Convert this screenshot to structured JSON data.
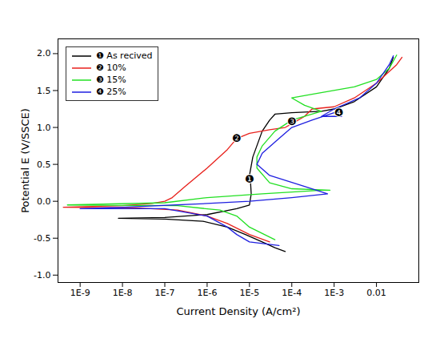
{
  "chart_data": {
    "type": "line",
    "x_label": "Current Density (A/cm²)",
    "y_label": "Potential E (V/SSCE)",
    "log": "x",
    "grid": false,
    "legend": "top-left",
    "xlim": [
      3e-10,
      0.1
    ],
    "ylim": [
      -1.1,
      2.2
    ],
    "xticks": [
      {
        "value": 1e-09,
        "label": "1E-9"
      },
      {
        "value": 1e-08,
        "label": "1E-8"
      },
      {
        "value": 1e-07,
        "label": "1E-7"
      },
      {
        "value": 1e-06,
        "label": "1E-6"
      },
      {
        "value": 1e-05,
        "label": "1E-5"
      },
      {
        "value": 0.0001,
        "label": "1E-4"
      },
      {
        "value": 0.001,
        "label": "1E-3"
      },
      0.01
    ],
    "yticks": [
      {
        "value": -1,
        "label": "-1.0"
      },
      -0.5,
      {
        "value": 0,
        "label": "0.0"
      },
      0.5,
      {
        "value": 1,
        "label": "1.0"
      },
      1.5,
      {
        "value": 2,
        "label": "2.0"
      }
    ],
    "series": [
      {
        "name": "❶ As recived",
        "color": "#000000",
        "x": [
          7e-05,
          4e-05,
          2e-05,
          8e-06,
          3e-06,
          8e-07,
          1e-07,
          8e-09,
          1e-07,
          1e-06,
          5e-06,
          1e-05,
          1.1e-05,
          1.05e-05,
          1e-05,
          1.2e-05,
          2e-05,
          3e-05,
          4e-05,
          0.0001,
          0.0005,
          0.001,
          0.003,
          0.01,
          0.02,
          0.025
        ],
        "values": [
          -0.68,
          -0.63,
          -0.55,
          -0.45,
          -0.35,
          -0.27,
          -0.24,
          -0.23,
          -0.22,
          -0.18,
          -0.1,
          -0.05,
          0.1,
          0.3,
          0.35,
          0.6,
          0.95,
          1.1,
          1.18,
          1.2,
          1.22,
          1.25,
          1.35,
          1.55,
          1.8,
          1.95
        ]
      },
      {
        "name": "❷ 10%",
        "color": "#e8211c",
        "x": [
          3e-05,
          1e-05,
          3e-06,
          1e-06,
          2e-07,
          2e-08,
          4e-10,
          1e-08,
          5e-08,
          1e-07,
          1.5e-07,
          3e-07,
          1e-06,
          3e-06,
          5e-06,
          1e-05,
          3e-05,
          7e-05,
          0.0001,
          0.0002,
          0.0003,
          0.001,
          0.003,
          0.01,
          0.03,
          0.04
        ],
        "values": [
          -0.55,
          -0.45,
          -0.3,
          -0.2,
          -0.12,
          -0.09,
          -0.08,
          -0.06,
          -0.03,
          0.0,
          0.05,
          0.2,
          0.45,
          0.7,
          0.85,
          0.92,
          0.97,
          1.0,
          1.05,
          1.15,
          1.25,
          1.28,
          1.4,
          1.6,
          1.85,
          1.95
        ]
      },
      {
        "name": "❸ 15%",
        "color": "#22e022",
        "x": [
          4e-05,
          1e-05,
          5e-06,
          2e-06,
          2e-07,
          5e-10,
          1e-07,
          1e-06,
          2e-05,
          0.0005,
          0.0008,
          0.0001,
          3e-05,
          1.5e-05,
          1.5e-05,
          2e-05,
          4e-05,
          0.0001,
          0.0005,
          0.0002,
          0.0001,
          0.0003,
          0.003,
          0.01,
          0.02,
          0.03
        ],
        "values": [
          -0.52,
          -0.35,
          -0.2,
          -0.12,
          -0.06,
          -0.05,
          -0.02,
          0.05,
          0.1,
          0.15,
          0.15,
          0.17,
          0.25,
          0.45,
          0.6,
          0.75,
          0.95,
          1.1,
          1.22,
          1.3,
          1.4,
          1.45,
          1.55,
          1.65,
          1.8,
          1.98
        ]
      },
      {
        "name": "❹ 25%",
        "color": "#1f1fe0",
        "x": [
          5e-05,
          1e-05,
          5e-06,
          3e-06,
          1e-06,
          1e-07,
          1e-09,
          1e-08,
          1e-06,
          1e-05,
          0.0001,
          0.0007,
          0.0002,
          3e-05,
          1.5e-05,
          2e-05,
          5e-05,
          0.0001,
          0.0003,
          0.001,
          0.0015,
          0.0005,
          0.001,
          0.004,
          0.01,
          0.02,
          0.025
        ],
        "values": [
          -0.6,
          -0.55,
          -0.45,
          -0.35,
          -0.2,
          -0.1,
          -0.1,
          -0.08,
          -0.03,
          0.0,
          0.05,
          0.1,
          0.2,
          0.35,
          0.5,
          0.65,
          0.85,
          1.0,
          1.1,
          1.2,
          1.15,
          1.15,
          1.25,
          1.4,
          1.6,
          1.85,
          1.97
        ]
      }
    ],
    "annotations": [
      {
        "text": "❶",
        "x": 1e-05,
        "y": 0.3
      },
      {
        "text": "❷",
        "x": 5e-06,
        "y": 0.85
      },
      {
        "text": "❸",
        "x": 0.0001,
        "y": 1.08
      },
      {
        "text": "❹",
        "x": 0.0013,
        "y": 1.2
      }
    ]
  }
}
